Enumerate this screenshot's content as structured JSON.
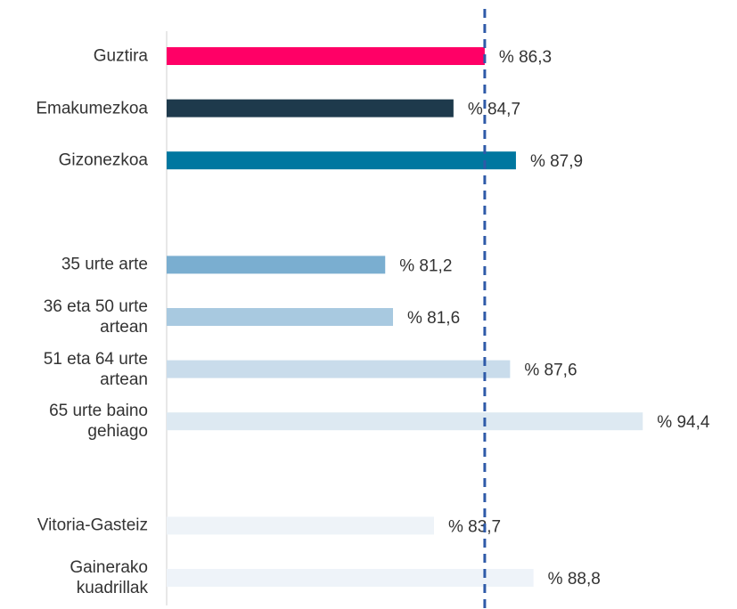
{
  "chart_data": {
    "type": "barh",
    "categories": [
      "Guztira",
      "Emakumezkoa",
      "Gizonezkoa",
      null,
      "35 urte arte",
      "36 eta 50 urte artean",
      "51 eta 64 urte artean",
      "65 urte baino gehiago",
      null,
      "Vitoria-Gasteiz",
      "Gainerako kuadrillak"
    ],
    "values": [
      86.3,
      84.7,
      87.9,
      null,
      81.2,
      81.6,
      87.6,
      94.4,
      null,
      83.7,
      88.8
    ],
    "value_labels": [
      "% 86,3",
      "% 84,7",
      "% 87,9",
      null,
      "% 81,2",
      "% 81,6",
      "% 87,6",
      "% 94,4",
      null,
      "% 83,7",
      "% 88,8"
    ],
    "colors": [
      "#ff0066",
      "#1e3a4c",
      "#0077a0",
      null,
      "#7aaed0",
      "#a8c9e0",
      "#c9dceb",
      "#dde9f2",
      null,
      "#eef3f8",
      "#eef3f9"
    ],
    "xlim": [
      70,
      99
    ],
    "reference_line": 86.3,
    "reference_color": "#2e5aa8"
  }
}
